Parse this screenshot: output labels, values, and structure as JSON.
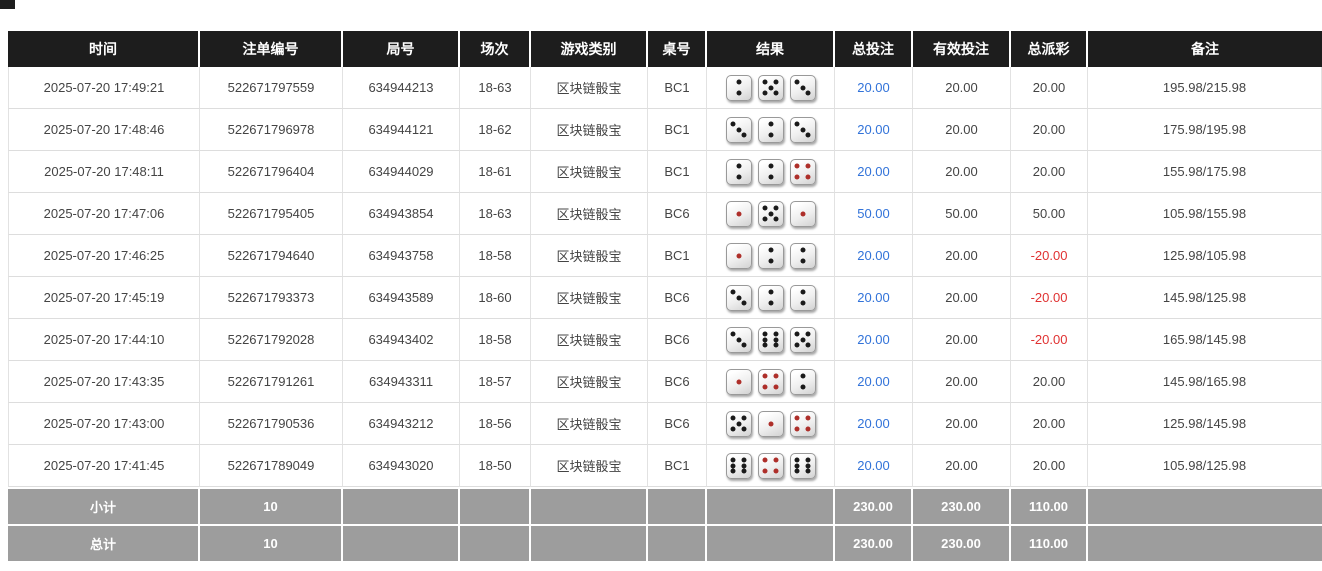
{
  "colors": {
    "header_bg": "#1d1d1d",
    "footer_bg": "#9d9d9d",
    "link_blue": "#3273d9",
    "negative_red": "#e03232",
    "dice_red_pip": "#ae2f2a",
    "row_border": "#dddddd"
  },
  "table": {
    "columns": [
      "时间",
      "注单编号",
      "局号",
      "场次",
      "游戏类别",
      "桌号",
      "结果",
      "总投注",
      "有效投注",
      "总派彩",
      "备注"
    ],
    "rows": [
      {
        "time": "2025-07-20 17:49:21",
        "bet_number": "522671797559",
        "round_number": "634944213",
        "session": "18-63",
        "game_type": "区块链骰宝",
        "table_number": "BC1",
        "dice": [
          2,
          5,
          3
        ],
        "total_bet": "20.00",
        "valid_bet": "20.00",
        "payout": "20.00",
        "remark": "195.98/215.98"
      },
      {
        "time": "2025-07-20 17:48:46",
        "bet_number": "522671796978",
        "round_number": "634944121",
        "session": "18-62",
        "game_type": "区块链骰宝",
        "table_number": "BC1",
        "dice": [
          3,
          2,
          3
        ],
        "total_bet": "20.00",
        "valid_bet": "20.00",
        "payout": "20.00",
        "remark": "175.98/195.98"
      },
      {
        "time": "2025-07-20 17:48:11",
        "bet_number": "522671796404",
        "round_number": "634944029",
        "session": "18-61",
        "game_type": "区块链骰宝",
        "table_number": "BC1",
        "dice": [
          2,
          2,
          4
        ],
        "total_bet": "20.00",
        "valid_bet": "20.00",
        "payout": "20.00",
        "remark": "155.98/175.98"
      },
      {
        "time": "2025-07-20 17:47:06",
        "bet_number": "522671795405",
        "round_number": "634943854",
        "session": "18-63",
        "game_type": "区块链骰宝",
        "table_number": "BC6",
        "dice": [
          1,
          5,
          1
        ],
        "total_bet": "50.00",
        "valid_bet": "50.00",
        "payout": "50.00",
        "remark": "105.98/155.98"
      },
      {
        "time": "2025-07-20 17:46:25",
        "bet_number": "522671794640",
        "round_number": "634943758",
        "session": "18-58",
        "game_type": "区块链骰宝",
        "table_number": "BC1",
        "dice": [
          1,
          2,
          2
        ],
        "total_bet": "20.00",
        "valid_bet": "20.00",
        "payout": "-20.00",
        "remark": "125.98/105.98"
      },
      {
        "time": "2025-07-20 17:45:19",
        "bet_number": "522671793373",
        "round_number": "634943589",
        "session": "18-60",
        "game_type": "区块链骰宝",
        "table_number": "BC6",
        "dice": [
          3,
          2,
          2
        ],
        "total_bet": "20.00",
        "valid_bet": "20.00",
        "payout": "-20.00",
        "remark": "145.98/125.98"
      },
      {
        "time": "2025-07-20 17:44:10",
        "bet_number": "522671792028",
        "round_number": "634943402",
        "session": "18-58",
        "game_type": "区块链骰宝",
        "table_number": "BC6",
        "dice": [
          3,
          6,
          5
        ],
        "total_bet": "20.00",
        "valid_bet": "20.00",
        "payout": "-20.00",
        "remark": "165.98/145.98"
      },
      {
        "time": "2025-07-20 17:43:35",
        "bet_number": "522671791261",
        "round_number": "634943311",
        "session": "18-57",
        "game_type": "区块链骰宝",
        "table_number": "BC6",
        "dice": [
          1,
          4,
          2
        ],
        "total_bet": "20.00",
        "valid_bet": "20.00",
        "payout": "20.00",
        "remark": "145.98/165.98"
      },
      {
        "time": "2025-07-20 17:43:00",
        "bet_number": "522671790536",
        "round_number": "634943212",
        "session": "18-56",
        "game_type": "区块链骰宝",
        "table_number": "BC6",
        "dice": [
          5,
          1,
          4
        ],
        "total_bet": "20.00",
        "valid_bet": "20.00",
        "payout": "20.00",
        "remark": "125.98/145.98"
      },
      {
        "time": "2025-07-20 17:41:45",
        "bet_number": "522671789049",
        "round_number": "634943020",
        "session": "18-50",
        "game_type": "区块链骰宝",
        "table_number": "BC1",
        "dice": [
          6,
          4,
          6
        ],
        "total_bet": "20.00",
        "valid_bet": "20.00",
        "payout": "20.00",
        "remark": "105.98/125.98"
      }
    ],
    "footer": [
      {
        "label": "小计",
        "count": "10",
        "total_bet": "230.00",
        "valid_bet": "230.00",
        "payout": "110.00"
      },
      {
        "label": "总计",
        "count": "10",
        "total_bet": "230.00",
        "valid_bet": "230.00",
        "payout": "110.00"
      }
    ]
  }
}
